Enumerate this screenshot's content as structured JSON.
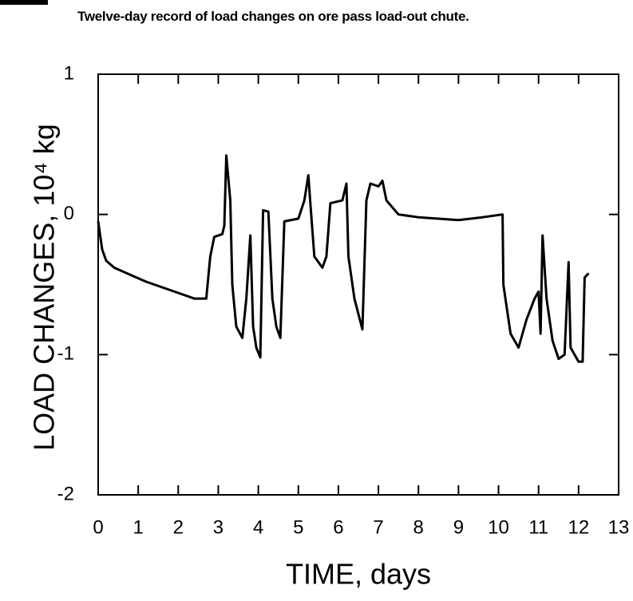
{
  "chart_data": {
    "type": "line",
    "title": "Twelve-day record of load changes on ore pass load-out chute.",
    "x_label": "TIME, days",
    "y_label": "LOAD CHANGES, 10⁴ kg",
    "color": "#000000",
    "x": [
      0,
      0.1,
      0.2,
      0.4,
      0.8,
      1.2,
      1.6,
      2.0,
      2.4,
      2.7,
      2.75,
      2.8,
      2.9,
      3.1,
      3.15,
      3.2,
      3.3,
      3.35,
      3.45,
      3.6,
      3.7,
      3.8,
      3.87,
      3.95,
      4.05,
      4.12,
      4.25,
      4.35,
      4.45,
      4.55,
      4.65,
      5.0,
      5.15,
      5.25,
      5.3,
      5.4,
      5.6,
      5.7,
      5.8,
      6.1,
      6.2,
      6.25,
      6.4,
      6.6,
      6.7,
      6.8,
      7.0,
      7.1,
      7.2,
      7.5,
      8.0,
      9.0,
      9.6,
      10.1,
      10.12,
      10.3,
      10.5,
      10.7,
      10.9,
      11.0,
      11.05,
      11.1,
      11.2,
      11.35,
      11.5,
      11.65,
      11.75,
      11.8,
      12.0,
      12.1,
      12.15,
      12.25
    ],
    "values": [
      -0.05,
      -0.25,
      -0.33,
      -0.38,
      -0.43,
      -0.48,
      -0.52,
      -0.56,
      -0.6,
      -0.6,
      -0.45,
      -0.3,
      -0.16,
      -0.14,
      -0.08,
      0.42,
      0.1,
      -0.5,
      -0.8,
      -0.88,
      -0.6,
      -0.15,
      -0.8,
      -0.95,
      -1.02,
      0.03,
      0.02,
      -0.6,
      -0.8,
      -0.88,
      -0.05,
      -0.03,
      0.1,
      0.28,
      0.08,
      -0.3,
      -0.38,
      -0.3,
      0.08,
      0.1,
      0.22,
      -0.3,
      -0.6,
      -0.82,
      0.1,
      0.22,
      0.2,
      0.24,
      0.1,
      0.0,
      -0.02,
      -0.04,
      -0.02,
      0.0,
      -0.5,
      -0.85,
      -0.95,
      -0.75,
      -0.6,
      -0.55,
      -0.85,
      -0.15,
      -0.6,
      -0.9,
      -1.03,
      -1.0,
      -0.34,
      -0.95,
      -1.05,
      -1.05,
      -0.45,
      -0.42
    ],
    "xlim": [
      0,
      13
    ],
    "xticks": [
      0,
      1,
      2,
      3,
      4,
      5,
      6,
      7,
      8,
      9,
      10,
      11,
      12,
      13
    ],
    "ylim": [
      -2,
      1
    ],
    "yticks": [
      -2,
      -1,
      0,
      1
    ]
  }
}
